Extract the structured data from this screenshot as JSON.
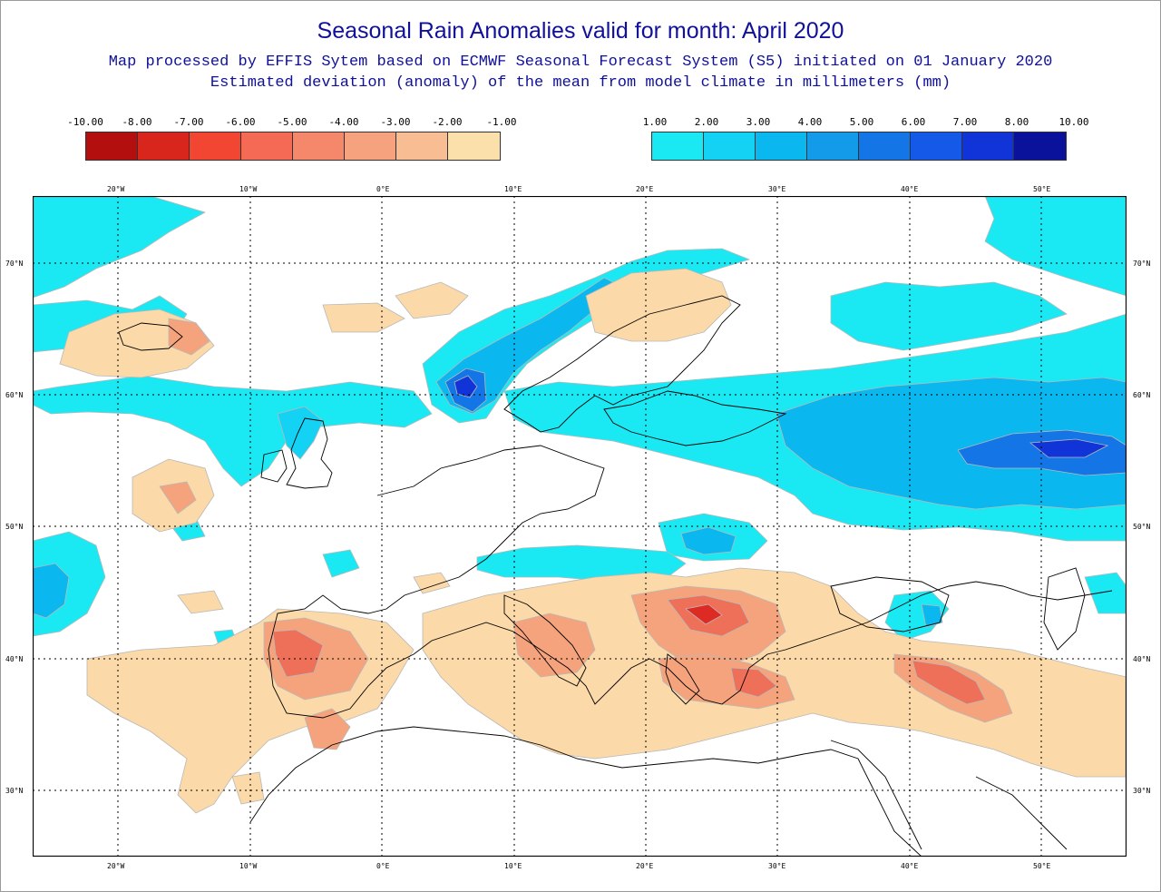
{
  "title": "Seasonal Rain Anomalies valid for month: April 2020",
  "subtitle_line1": "Map processed by EFFIS Sytem based on ECMWF Seasonal Forecast System (S5) initiated on 01 January 2020",
  "subtitle_line2": "Estimated deviation (anomaly) of the mean from model climate in millimeters (mm)",
  "legend_negative": {
    "ticks": [
      "-10.00",
      "-8.00",
      "-7.00",
      "-6.00",
      "-5.00",
      "-4.00",
      "-3.00",
      "-2.00",
      "-1.00"
    ],
    "colors": [
      "#b30f0f",
      "#d9261c",
      "#f24633",
      "#f46a54",
      "#f5876b",
      "#f6a27f",
      "#f8bd92",
      "#fbe0ab"
    ]
  },
  "legend_positive": {
    "ticks": [
      "1.00",
      "2.00",
      "3.00",
      "4.00",
      "5.00",
      "6.00",
      "7.00",
      "8.00",
      "10.00"
    ],
    "colors": [
      "#1ae9f4",
      "#14d2f3",
      "#0ab7ee",
      "#139ae8",
      "#1476e6",
      "#1459e8",
      "#1034d8",
      "#0a119a"
    ]
  },
  "map": {
    "lon_labels": [
      "20°W",
      "10°W",
      "0°E",
      "10°E",
      "20°E",
      "30°E",
      "40°E",
      "50°E"
    ],
    "lat_labels": [
      "70°N",
      "60°N",
      "50°N",
      "40°N",
      "30°N"
    ],
    "lon_range": [
      -26.5,
      56.5
    ],
    "lat_range": [
      25,
      75
    ],
    "colors": {
      "dry1": "#fbd9a8",
      "dry2": "#f5a37d",
      "dry3": "#ee7058",
      "dry4": "#dd2a22",
      "wet1": "#1ae9f4",
      "wet2": "#14d2f3",
      "wet3": "#0ab7ee",
      "wet4": "#1476e6",
      "wet5": "#1034d8",
      "coast": "#000000",
      "grid": "#000000",
      "contour": "#b8b8b8"
    }
  }
}
